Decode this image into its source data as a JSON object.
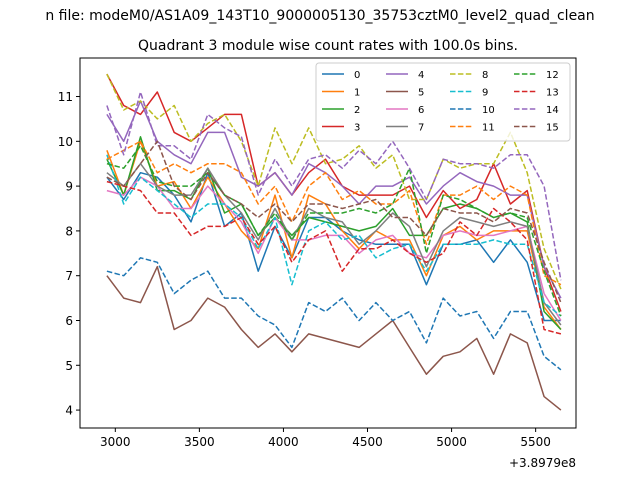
{
  "chart_data": {
    "type": "line",
    "suptitle": "n file: modeM0/AS1A09_143T10_9000005130_35753cztM0_level2_quad_clean",
    "title": "Quadrant 3 module wise count rates with 100.0s bins.",
    "xlabel": "",
    "ylabel": "",
    "x_offset_label": "+3.8979e8",
    "xlim": [
      2790,
      5740
    ],
    "ylim": [
      3.6,
      11.86
    ],
    "xticks": [
      3000,
      3500,
      4000,
      4500,
      5000,
      5500
    ],
    "xtick_labels": [
      "3000",
      "3500",
      "4000",
      "4500",
      "5000",
      "5500"
    ],
    "yticks": [
      4,
      5,
      6,
      7,
      8,
      9,
      10,
      11
    ],
    "ytick_labels": [
      "4",
      "5",
      "6",
      "7",
      "8",
      "9",
      "10",
      "11"
    ],
    "legend_position": "top-right",
    "x": [
      2950,
      3050,
      3150,
      3250,
      3350,
      3450,
      3550,
      3650,
      3750,
      3850,
      3950,
      4050,
      4150,
      4250,
      4350,
      4450,
      4550,
      4650,
      4750,
      4850,
      4950,
      5050,
      5150,
      5250,
      5350,
      5450,
      5550,
      5650
    ],
    "series": [
      {
        "name": "0",
        "color": "#1f77b4",
        "dash": "solid",
        "values": [
          9.2,
          8.7,
          9.3,
          9.2,
          8.8,
          8.2,
          9.3,
          8.1,
          8.4,
          7.1,
          8.1,
          7.4,
          8.3,
          8.3,
          8.0,
          7.8,
          7.7,
          7.7,
          7.7,
          6.8,
          7.7,
          7.7,
          7.8,
          7.3,
          7.8,
          7.3,
          6.0,
          6.0
        ]
      },
      {
        "name": "1",
        "color": "#ff7f0e",
        "dash": "solid",
        "values": [
          9.8,
          8.8,
          10.0,
          9.0,
          9.1,
          8.5,
          9.2,
          8.6,
          8.0,
          7.6,
          8.8,
          7.4,
          8.8,
          8.6,
          8.0,
          7.6,
          8.0,
          7.8,
          7.8,
          7.0,
          7.9,
          8.1,
          7.8,
          8.0,
          8.0,
          8.0,
          6.3,
          5.8
        ]
      },
      {
        "name": "2",
        "color": "#2ca02c",
        "dash": "solid",
        "values": [
          9.6,
          8.8,
          10.1,
          8.9,
          8.9,
          8.7,
          9.4,
          8.4,
          8.6,
          7.9,
          8.3,
          7.9,
          8.3,
          8.2,
          8.1,
          8.0,
          8.1,
          8.5,
          7.9,
          7.9,
          8.5,
          8.6,
          8.5,
          8.3,
          8.4,
          8.2,
          6.2,
          5.8
        ]
      },
      {
        "name": "3",
        "color": "#d62728",
        "dash": "solid",
        "values": [
          11.5,
          10.8,
          10.6,
          11.1,
          10.2,
          10.0,
          10.3,
          10.6,
          10.6,
          9.0,
          9.3,
          8.8,
          9.3,
          9.6,
          9.0,
          8.8,
          8.8,
          8.8,
          9.0,
          8.3,
          8.9,
          8.5,
          8.7,
          9.5,
          8.6,
          8.9,
          7.2,
          6.2
        ]
      },
      {
        "name": "4",
        "color": "#9467bd",
        "dash": "solid",
        "values": [
          10.6,
          10.0,
          10.9,
          10.0,
          9.7,
          9.5,
          10.2,
          10.2,
          9.2,
          9.0,
          9.3,
          8.8,
          9.5,
          9.3,
          9.0,
          8.6,
          9.0,
          9.0,
          9.2,
          8.6,
          9.0,
          9.3,
          9.1,
          9.0,
          8.8,
          8.8,
          7.2,
          6.5
        ]
      },
      {
        "name": "5",
        "color": "#8c564b",
        "dash": "solid",
        "values": [
          7.0,
          6.5,
          6.4,
          7.2,
          5.8,
          6.0,
          6.5,
          6.3,
          5.8,
          5.4,
          5.7,
          5.3,
          5.7,
          5.6,
          5.5,
          5.4,
          5.7,
          6.0,
          5.4,
          4.8,
          5.2,
          5.3,
          5.6,
          4.8,
          5.7,
          5.5,
          4.3,
          4.0
        ]
      },
      {
        "name": "6",
        "color": "#e377c2",
        "dash": "solid",
        "values": [
          8.9,
          8.8,
          9.2,
          9.0,
          8.5,
          8.5,
          9.0,
          8.6,
          8.2,
          7.5,
          8.3,
          7.8,
          7.8,
          7.9,
          7.9,
          7.5,
          7.8,
          7.9,
          7.5,
          7.4,
          7.9,
          8.0,
          7.9,
          7.9,
          8.0,
          8.1,
          6.6,
          6.0
        ]
      },
      {
        "name": "7",
        "color": "#7f7f7f",
        "dash": "solid",
        "values": [
          9.3,
          9.0,
          9.5,
          9.0,
          8.8,
          8.8,
          9.4,
          8.8,
          8.4,
          7.8,
          8.5,
          7.8,
          8.5,
          8.3,
          8.2,
          7.7,
          8.0,
          8.4,
          8.1,
          7.2,
          8.0,
          8.3,
          8.2,
          8.1,
          8.2,
          8.1,
          6.4,
          5.9
        ]
      },
      {
        "name": "8",
        "color": "#bcbd22",
        "dash": "dashed",
        "values": [
          11.5,
          10.7,
          10.9,
          10.5,
          10.8,
          10.0,
          10.4,
          10.6,
          10.0,
          9.0,
          10.3,
          9.5,
          10.3,
          9.5,
          9.6,
          9.9,
          9.4,
          9.7,
          8.7,
          8.7,
          9.6,
          9.4,
          9.5,
          9.5,
          10.2,
          9.3,
          7.6,
          6.7
        ]
      },
      {
        "name": "9",
        "color": "#17becf",
        "dash": "dashed",
        "values": [
          9.7,
          8.6,
          9.2,
          8.9,
          8.6,
          8.3,
          8.6,
          8.6,
          8.3,
          7.6,
          8.3,
          6.8,
          8.0,
          8.2,
          7.8,
          7.9,
          7.4,
          7.6,
          7.7,
          7.1,
          7.7,
          7.7,
          7.7,
          7.8,
          7.7,
          7.7,
          6.4,
          6.1
        ]
      },
      {
        "name": "10",
        "color": "#1f77b4",
        "dash": "dashed",
        "values": [
          7.1,
          7.0,
          7.4,
          7.3,
          6.6,
          6.9,
          7.1,
          6.5,
          6.5,
          6.1,
          5.9,
          5.4,
          6.4,
          6.2,
          6.5,
          6.0,
          6.4,
          6.0,
          6.2,
          5.5,
          6.5,
          6.1,
          6.2,
          5.6,
          6.2,
          6.2,
          5.2,
          4.9
        ]
      },
      {
        "name": "11",
        "color": "#ff7f0e",
        "dash": "dashed",
        "values": [
          9.6,
          9.8,
          10.0,
          9.3,
          9.5,
          9.3,
          9.5,
          9.5,
          9.3,
          8.6,
          9.0,
          8.2,
          9.0,
          9.3,
          8.7,
          8.9,
          8.6,
          8.6,
          8.9,
          7.7,
          8.8,
          8.8,
          9.0,
          8.7,
          9.0,
          8.8,
          7.0,
          6.8
        ]
      },
      {
        "name": "12",
        "color": "#2ca02c",
        "dash": "dashed",
        "values": [
          9.5,
          9.4,
          9.9,
          9.1,
          9.0,
          9.0,
          9.3,
          8.8,
          8.6,
          7.9,
          8.4,
          7.8,
          8.4,
          8.4,
          8.4,
          8.5,
          8.4,
          8.6,
          9.4,
          7.5,
          8.8,
          8.7,
          8.5,
          8.3,
          8.4,
          8.3,
          7.1,
          6.1
        ]
      },
      {
        "name": "13",
        "color": "#d62728",
        "dash": "dashed",
        "values": [
          9.1,
          9.0,
          8.9,
          8.4,
          8.4,
          7.9,
          8.1,
          8.1,
          8.3,
          7.7,
          8.1,
          7.3,
          7.8,
          8.0,
          7.1,
          7.6,
          7.6,
          7.8,
          7.5,
          7.3,
          7.5,
          8.2,
          7.9,
          8.5,
          8.2,
          7.8,
          5.8,
          5.7
        ]
      },
      {
        "name": "14",
        "color": "#9467bd",
        "dash": "dashed",
        "values": [
          10.8,
          9.7,
          11.1,
          9.9,
          9.9,
          9.6,
          10.6,
          10.3,
          10.1,
          8.8,
          9.6,
          9.0,
          9.6,
          9.7,
          9.4,
          9.8,
          9.5,
          10.0,
          9.4,
          8.7,
          9.6,
          9.5,
          9.5,
          9.4,
          9.7,
          9.7,
          9.0,
          6.9
        ]
      },
      {
        "name": "15",
        "color": "#8c564b",
        "dash": "dashed",
        "values": [
          9.2,
          9.0,
          9.5,
          10.0,
          9.0,
          8.7,
          9.3,
          8.8,
          8.6,
          8.3,
          8.6,
          8.2,
          8.6,
          8.6,
          8.5,
          8.6,
          8.7,
          8.3,
          8.3,
          7.9,
          8.5,
          8.4,
          8.4,
          8.2,
          8.5,
          8.4,
          7.3,
          6.4
        ]
      }
    ]
  }
}
